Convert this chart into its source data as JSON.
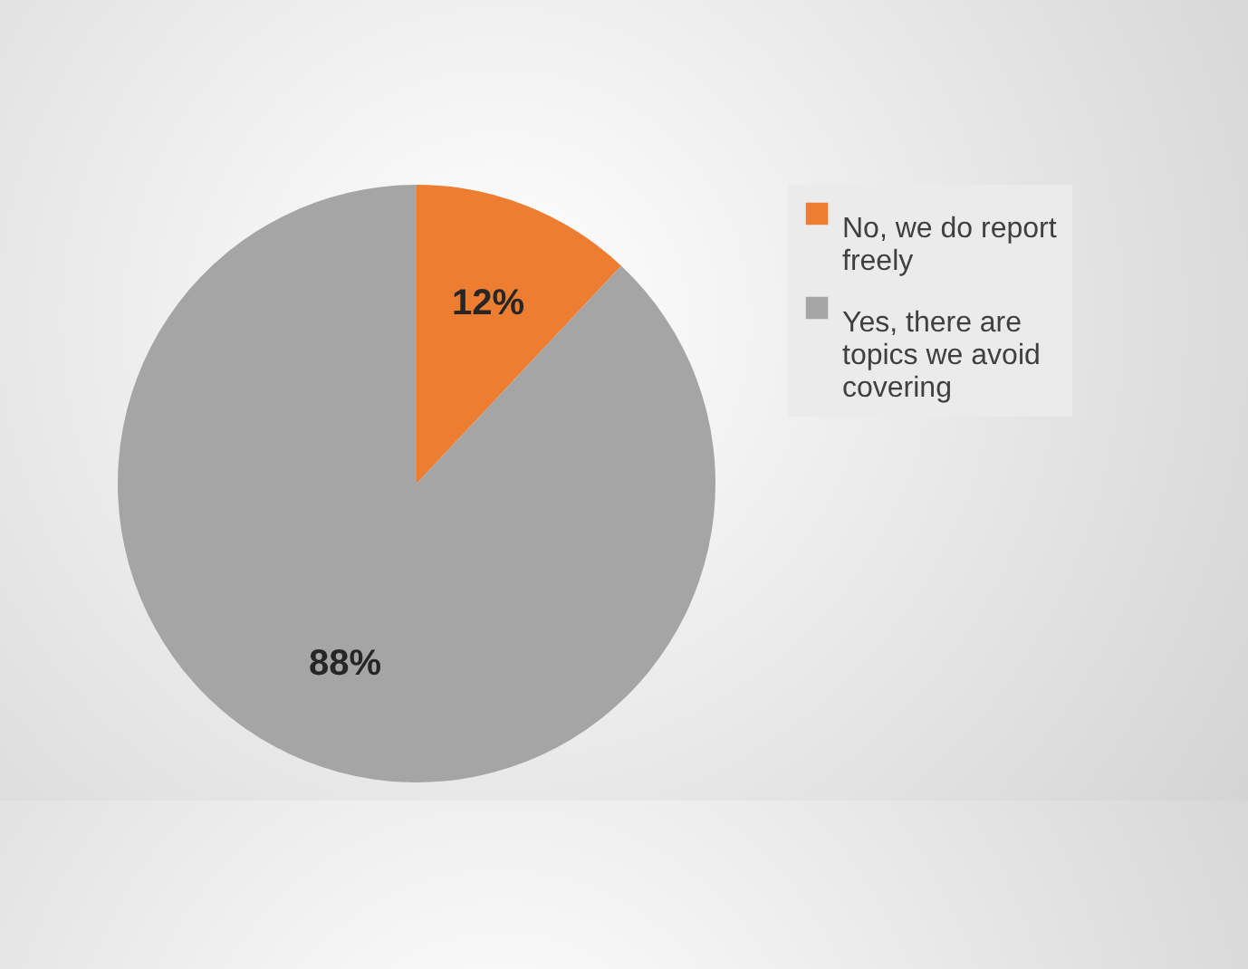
{
  "chart_data": {
    "type": "pie",
    "categories": [
      "No, we do report freely",
      "Yes, there are topics we avoid covering"
    ],
    "values": [
      12,
      88
    ],
    "colors": [
      "#ed7d31",
      "#a5a5a5"
    ],
    "value_labels": [
      "12%",
      "88%"
    ],
    "legend": "right"
  }
}
